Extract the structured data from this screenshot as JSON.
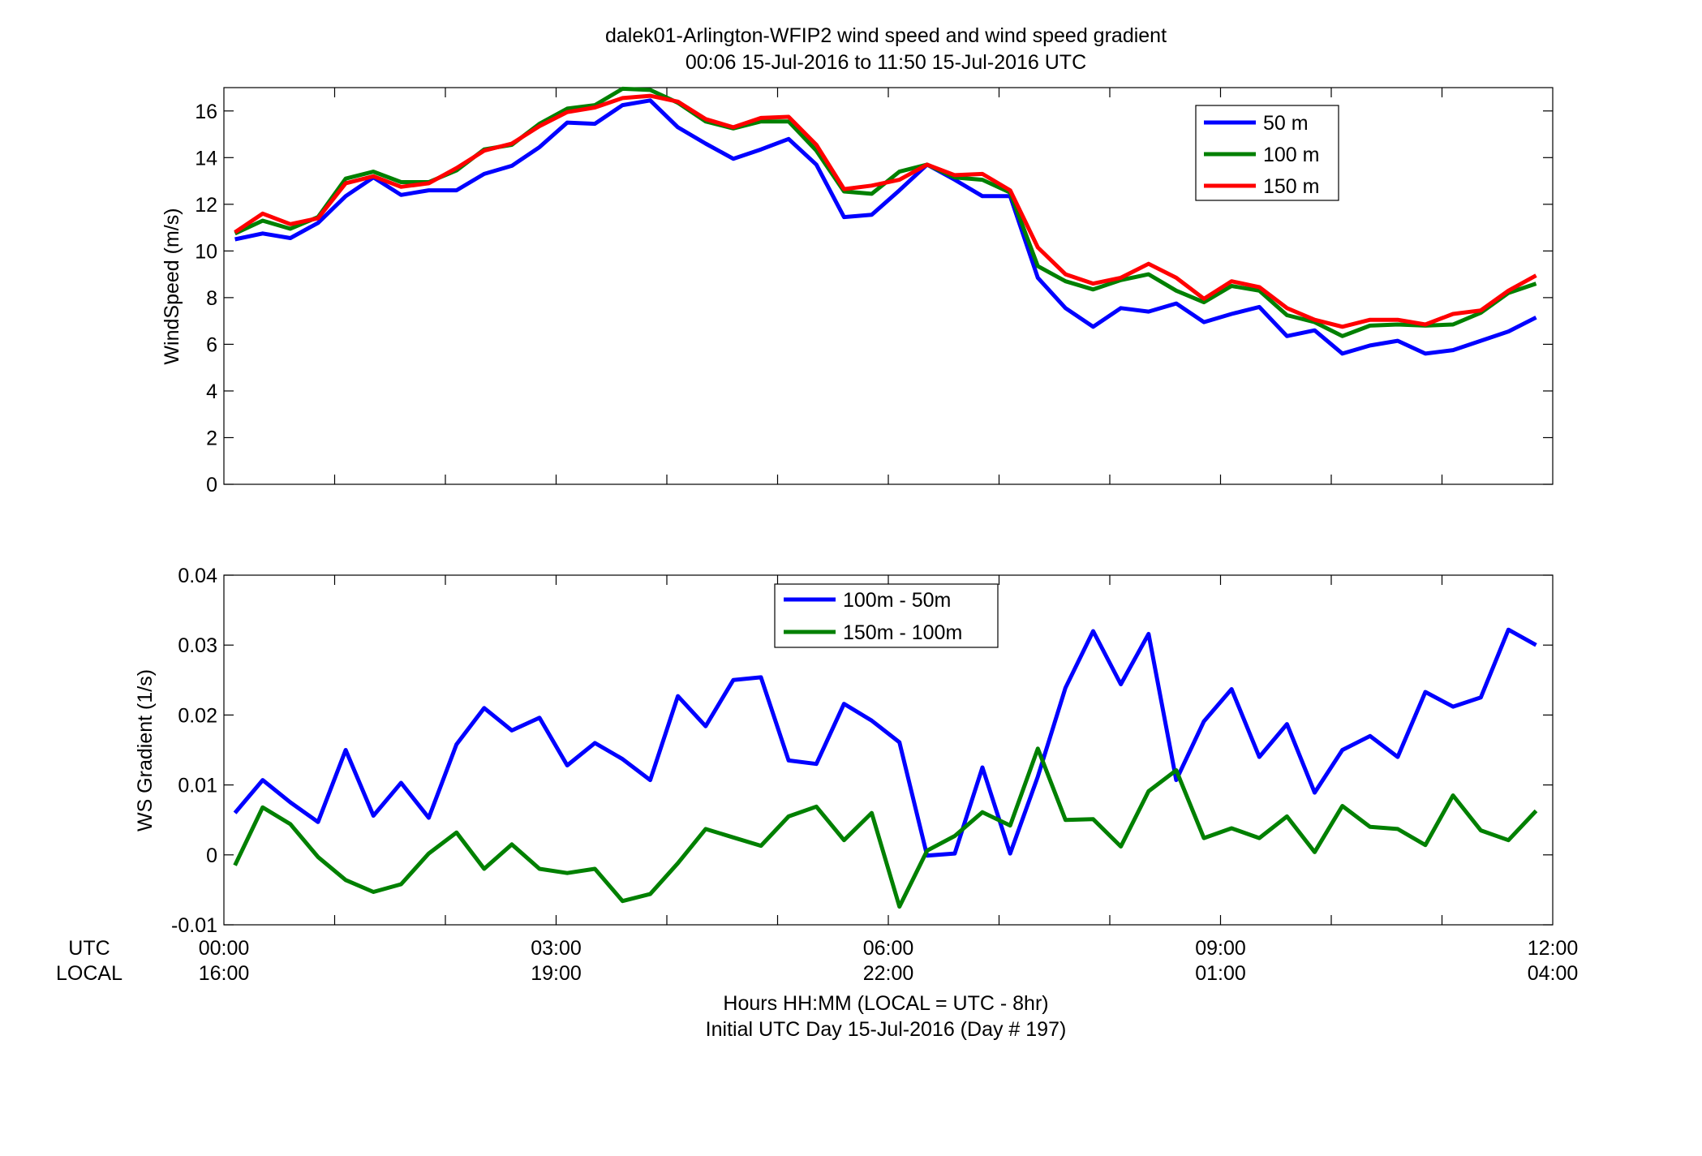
{
  "title": {
    "line1": "dalek01-Arlington-WFIP2  wind speed and wind speed gradient",
    "line2": "00:06 15-Jul-2016 to 11:50 15-Jul-2016  UTC"
  },
  "xaxis": {
    "utc_row_label": "UTC",
    "local_row_label": "LOCAL",
    "utc_ticks": [
      "00:00",
      "03:00",
      "06:00",
      "09:00",
      "12:00"
    ],
    "local_ticks": [
      "16:00",
      "19:00",
      "22:00",
      "01:00",
      "04:00"
    ],
    "label_line1": "Hours HH:MM  (LOCAL = UTC - 8hr)",
    "label_line2": "Initial UTC Day 15-Jul-2016 (Day # 197)"
  },
  "colors": {
    "blue": "#0000ff",
    "green": "#008000",
    "red": "#ff0000"
  },
  "chart_data": [
    {
      "type": "line",
      "ylabel": "WindSpeed (m/s)",
      "xlim": [
        0,
        12
      ],
      "ylim": [
        0,
        17
      ],
      "yticks": [
        0,
        2,
        4,
        6,
        8,
        10,
        12,
        14,
        16
      ],
      "yticklabels": [
        "0",
        "2",
        "4",
        "6",
        "8",
        "10",
        "12",
        "14",
        "16"
      ],
      "legend_position": "top-right",
      "x": [
        0.1,
        0.35,
        0.6,
        0.85,
        1.1,
        1.35,
        1.6,
        1.85,
        2.1,
        2.35,
        2.6,
        2.85,
        3.1,
        3.35,
        3.6,
        3.85,
        4.1,
        4.35,
        4.6,
        4.85,
        5.1,
        5.35,
        5.6,
        5.85,
        6.1,
        6.35,
        6.6,
        6.85,
        7.1,
        7.35,
        7.6,
        7.85,
        8.1,
        8.35,
        8.6,
        8.85,
        9.1,
        9.35,
        9.6,
        9.85,
        10.1,
        10.35,
        10.6,
        10.85,
        11.1,
        11.35,
        11.6,
        11.85
      ],
      "series": [
        {
          "name": "50 m",
          "color": "#0000ff",
          "values": [
            10.5,
            10.75,
            10.55,
            11.2,
            12.35,
            13.15,
            12.4,
            12.6,
            12.6,
            13.3,
            13.65,
            14.45,
            15.5,
            15.45,
            16.25,
            16.45,
            15.3,
            14.6,
            13.95,
            14.35,
            14.8,
            13.7,
            11.45,
            11.55,
            12.6,
            13.7,
            13.05,
            12.35,
            12.35,
            8.85,
            7.55,
            6.75,
            7.55,
            7.4,
            7.75,
            6.95,
            7.3,
            7.6,
            6.35,
            6.6,
            5.6,
            5.95,
            6.15,
            5.6,
            5.75,
            6.15,
            6.55,
            7.15
          ]
        },
        {
          "name": "100 m",
          "color": "#008000",
          "values": [
            10.75,
            11.3,
            10.95,
            11.45,
            13.1,
            13.4,
            12.95,
            12.95,
            13.45,
            14.35,
            14.55,
            15.45,
            16.1,
            16.25,
            16.95,
            16.9,
            16.35,
            15.55,
            15.25,
            15.55,
            15.55,
            14.3,
            12.55,
            12.45,
            13.4,
            13.7,
            13.15,
            13.05,
            12.5,
            9.35,
            8.7,
            8.35,
            8.75,
            9.0,
            8.3,
            7.8,
            8.5,
            8.3,
            7.25,
            6.95,
            6.35,
            6.8,
            6.85,
            6.8,
            6.85,
            7.35,
            8.2,
            8.6
          ]
        },
        {
          "name": "150 m",
          "color": "#ff0000",
          "values": [
            10.8,
            11.6,
            11.15,
            11.4,
            12.9,
            13.2,
            12.75,
            12.9,
            13.55,
            14.3,
            14.6,
            15.35,
            15.95,
            16.15,
            16.55,
            16.65,
            16.4,
            15.65,
            15.3,
            15.7,
            15.75,
            14.55,
            12.65,
            12.8,
            13.05,
            13.7,
            13.25,
            13.3,
            12.6,
            10.15,
            9.0,
            8.6,
            8.85,
            9.45,
            8.85,
            7.95,
            8.7,
            8.45,
            7.55,
            7.05,
            6.75,
            7.05,
            7.05,
            6.85,
            7.3,
            7.45,
            8.3,
            8.95
          ]
        }
      ]
    },
    {
      "type": "line",
      "ylabel": "WS Gradient (1/s)",
      "xlim": [
        0,
        12
      ],
      "ylim": [
        -0.01,
        0.04
      ],
      "yticks": [
        -0.01,
        0,
        0.01,
        0.02,
        0.03,
        0.04
      ],
      "yticklabels": [
        "-0.01",
        "0",
        "0.01",
        "0.02",
        "0.03",
        "0.04"
      ],
      "legend_position": "top-center",
      "x": [
        0.1,
        0.35,
        0.6,
        0.85,
        1.1,
        1.35,
        1.6,
        1.85,
        2.1,
        2.35,
        2.6,
        2.85,
        3.1,
        3.35,
        3.6,
        3.85,
        4.1,
        4.35,
        4.6,
        4.85,
        5.1,
        5.35,
        5.6,
        5.85,
        6.1,
        6.35,
        6.6,
        6.85,
        7.1,
        7.35,
        7.6,
        7.85,
        8.1,
        8.35,
        8.6,
        8.85,
        9.1,
        9.35,
        9.6,
        9.85,
        10.1,
        10.35,
        10.6,
        10.85,
        11.1,
        11.35,
        11.6,
        11.85
      ],
      "series": [
        {
          "name": "100m - 50m",
          "color": "#0000ff",
          "values": [
            0.006,
            0.0107,
            0.0075,
            0.0047,
            0.015,
            0.0056,
            0.0103,
            0.0053,
            0.0158,
            0.021,
            0.0178,
            0.0196,
            0.0128,
            0.016,
            0.0137,
            0.0107,
            0.0227,
            0.0184,
            0.025,
            0.0254,
            0.0135,
            0.013,
            0.0216,
            0.0192,
            0.0161,
            -0.0001,
            0.0002,
            0.0125,
            0.0002,
            0.0112,
            0.0239,
            0.032,
            0.0244,
            0.0316,
            0.0107,
            0.0191,
            0.0237,
            0.014,
            0.0187,
            0.0089,
            0.015,
            0.017,
            0.014,
            0.0233,
            0.0212,
            0.0225,
            0.0322,
            0.03
          ]
        },
        {
          "name": "150m - 100m",
          "color": "#008000",
          "values": [
            -0.0015,
            0.0068,
            0.0044,
            -0.0003,
            -0.0036,
            -0.0053,
            -0.0042,
            0.0002,
            0.0032,
            -0.002,
            0.0015,
            -0.002,
            -0.0026,
            -0.002,
            -0.0066,
            -0.0056,
            -0.0012,
            0.0037,
            0.0025,
            0.0013,
            0.0055,
            0.0069,
            0.0021,
            0.006,
            -0.0074,
            0.0006,
            0.0027,
            0.0061,
            0.0042,
            0.0152,
            0.005,
            0.0051,
            0.0012,
            0.0091,
            0.0121,
            0.0024,
            0.0038,
            0.0024,
            0.0055,
            0.0004,
            0.007,
            0.004,
            0.0037,
            0.0014,
            0.0085,
            0.0035,
            0.0021,
            0.0063
          ]
        }
      ]
    }
  ]
}
